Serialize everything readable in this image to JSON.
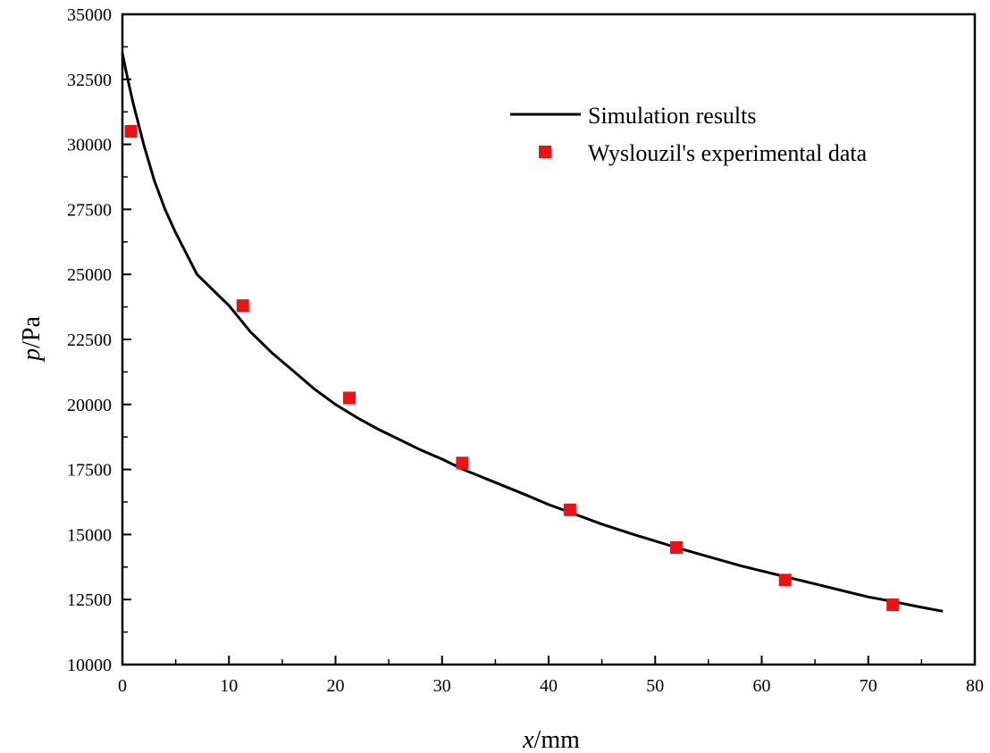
{
  "chart_data": {
    "type": "line",
    "title": "",
    "xlabel_var": "x",
    "xlabel_unit": "/mm",
    "ylabel_var": "p",
    "ylabel_unit": "/Pa",
    "xlim": [
      0,
      80
    ],
    "ylim": [
      10000,
      35000
    ],
    "x_ticks": [
      0,
      10,
      20,
      30,
      40,
      50,
      60,
      70,
      80
    ],
    "x_tick_labels": [
      "0",
      "10",
      "20",
      "30",
      "40",
      "50",
      "60",
      "70",
      "80"
    ],
    "y_ticks": [
      10000,
      12500,
      15000,
      17500,
      20000,
      22500,
      25000,
      27500,
      30000,
      32500,
      35000
    ],
    "y_tick_labels": [
      "10000",
      "12500",
      "15000",
      "17500",
      "20000",
      "22500",
      "25000",
      "27500",
      "30000",
      "32500",
      "35000"
    ],
    "grid": false,
    "legend_position": "top-right",
    "series": [
      {
        "name": "Simulation results",
        "kind": "line",
        "color": "#000000",
        "x": [
          0,
          0.5,
          1,
          2,
          3,
          4,
          5,
          6,
          7,
          8,
          9,
          10,
          11,
          12,
          14,
          16,
          18,
          20,
          22,
          24,
          26,
          28,
          30,
          32,
          35,
          38,
          40,
          42,
          45,
          48,
          50,
          52,
          55,
          58,
          60,
          62,
          65,
          68,
          70,
          72,
          75,
          77
        ],
        "y": [
          33500,
          32500,
          31600,
          30000,
          28600,
          27500,
          26600,
          25800,
          25000,
          24600,
          24200,
          23800,
          23300,
          22800,
          22000,
          21300,
          20600,
          20000,
          19500,
          19050,
          18650,
          18250,
          17900,
          17500,
          17000,
          16500,
          16150,
          15850,
          15400,
          15000,
          14750,
          14500,
          14150,
          13800,
          13600,
          13400,
          13100,
          12800,
          12600,
          12450,
          12200,
          12050
        ]
      },
      {
        "name": "Wyslouzil's experimental data",
        "kind": "scatter",
        "color": "#ee1111",
        "x": [
          0.8,
          11.3,
          21.3,
          31.9,
          42.0,
          52.0,
          62.2,
          72.3
        ],
        "y": [
          30500,
          23800,
          20250,
          17750,
          15950,
          14500,
          13250,
          12300
        ]
      }
    ]
  }
}
